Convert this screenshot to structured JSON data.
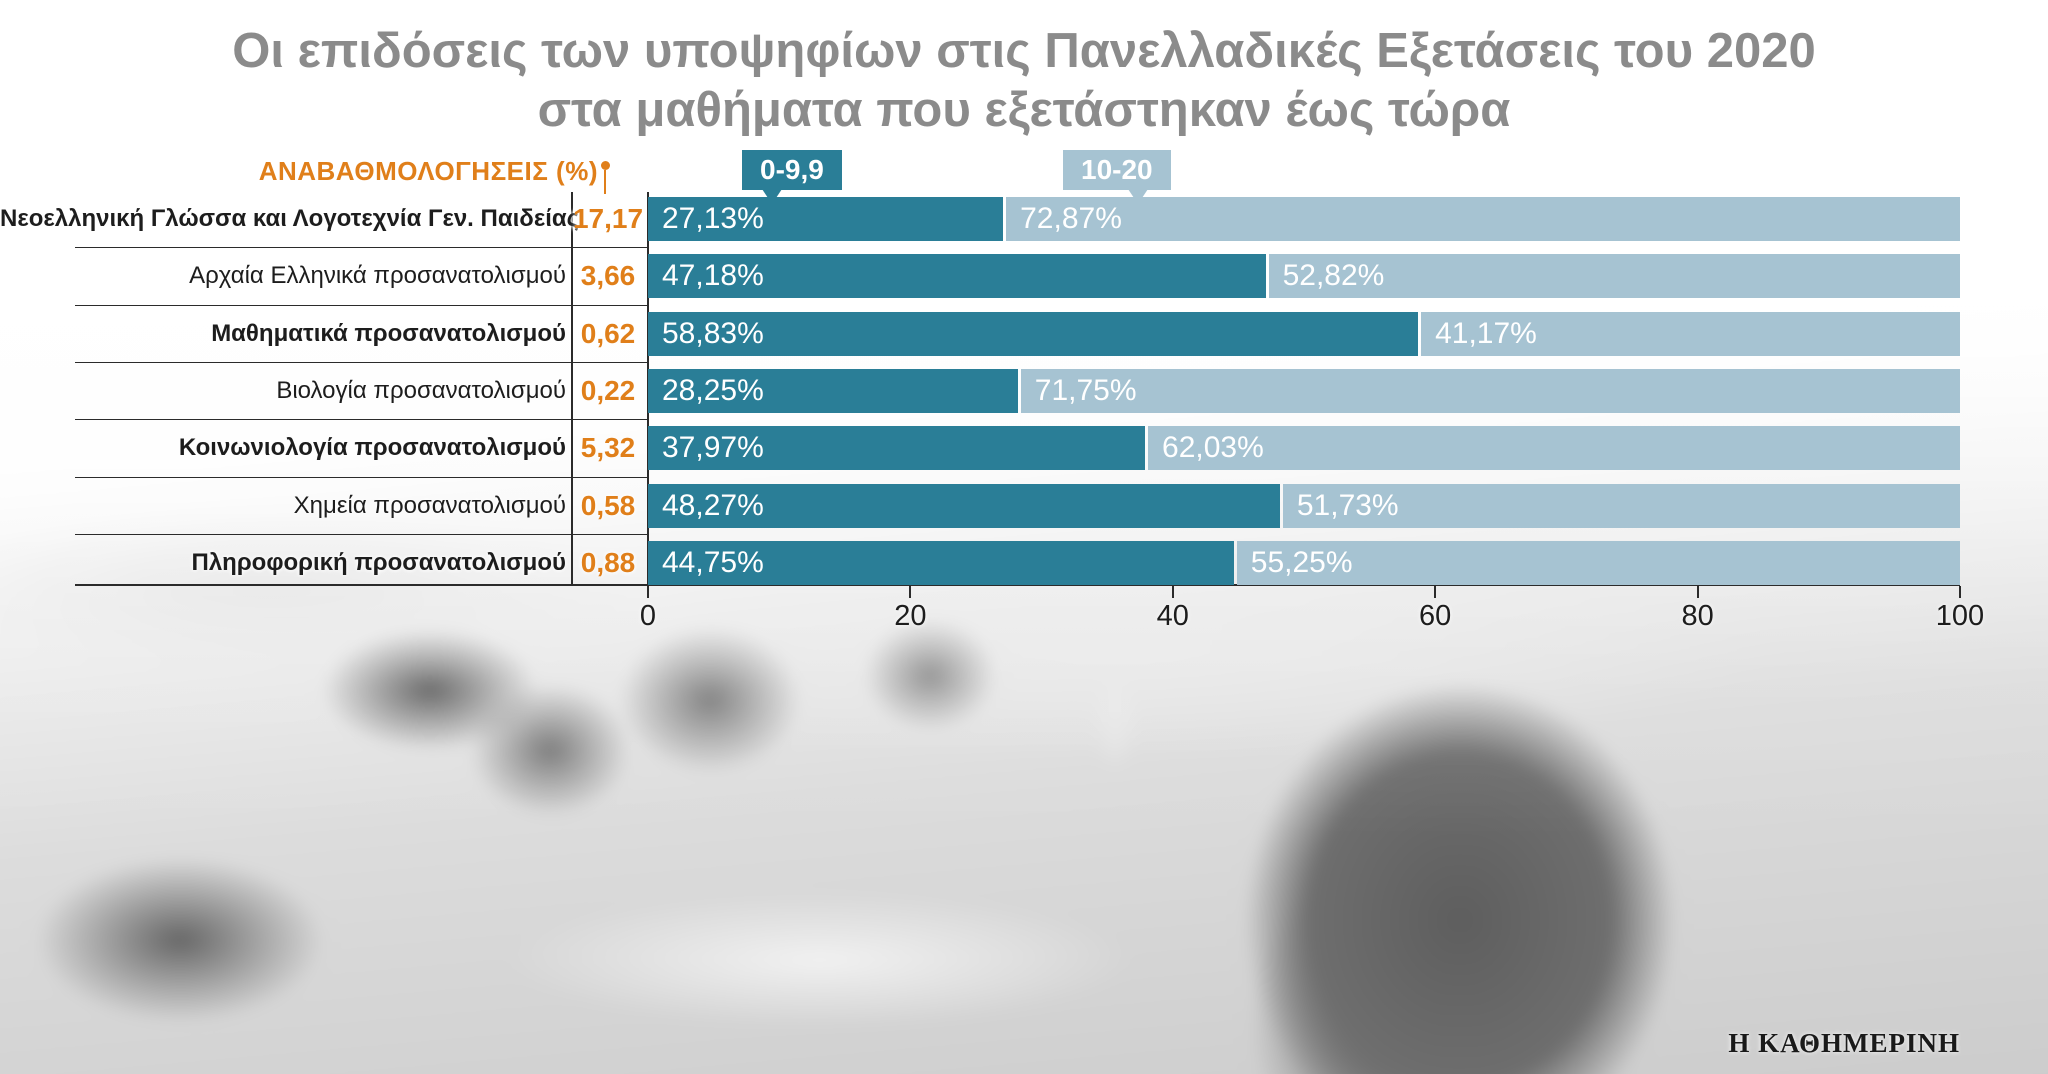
{
  "title": {
    "line1": "Οι επιδόσεις των υποψηφίων στις Πανελλαδικές Εξετάσεις του 2020",
    "line2": "στα μαθήματα που εξετάστηκαν έως τώρα"
  },
  "regrade_header": "ΑΝΑΒΑΘΜΟΛΟΓΗΣΕΙΣ (%)",
  "footer_brand": "Η ΚΑΘΗΜΕΡΙΝΗ",
  "colors": {
    "orange": "#e07f1a",
    "bar_dark": "#2a7e97",
    "bar_light": "#a6c3d2",
    "title_gray": "#8b8b8b"
  },
  "chart_data": {
    "type": "bar",
    "orientation": "horizontal",
    "stacked": true,
    "title": "Οι επιδόσεις των υποψηφίων στις Πανελλαδικές Εξετάσεις του 2020 στα μαθήματα που εξετάστηκαν έως τώρα",
    "categories": [
      "Νεοελληνική Γλώσσα και Λογοτεχνία Γεν. Παιδείας",
      "Αρχαία Ελληνικά προσανατολισμού",
      "Μαθηματικά προσανατολισμού",
      "Βιολογία προσανατολισμού",
      "Κοινωνιολογία προσανατολισμού",
      "Χημεία προσανατολισμού",
      "Πληροφορική προσανατολισμού"
    ],
    "regrades_percent": [
      "17,17",
      "3,66",
      "0,62",
      "0,22",
      "5,32",
      "0,58",
      "0,88"
    ],
    "series": [
      {
        "name": "0-9,9",
        "color": "#2a7e97",
        "values": [
          27.13,
          47.18,
          58.83,
          28.25,
          37.97,
          48.27,
          44.75
        ],
        "labels": [
          "27,13%",
          "47,18%",
          "58,83%",
          "28,25%",
          "37,97%",
          "48,27%",
          "44,75%"
        ]
      },
      {
        "name": "10-20",
        "color": "#a6c3d2",
        "values": [
          72.87,
          52.82,
          41.17,
          71.75,
          62.03,
          51.73,
          55.25
        ],
        "labels": [
          "72,87%",
          "52,82%",
          "41,17%",
          "71,75%",
          "62,03%",
          "51,73%",
          "55,25%"
        ]
      }
    ],
    "x_axis": {
      "min": 0,
      "max": 100,
      "ticks": [
        0,
        20,
        40,
        60,
        80,
        100
      ]
    },
    "legend": [
      {
        "label": "0-9,9"
      },
      {
        "label": "10-20"
      }
    ],
    "legend_position": "top"
  }
}
